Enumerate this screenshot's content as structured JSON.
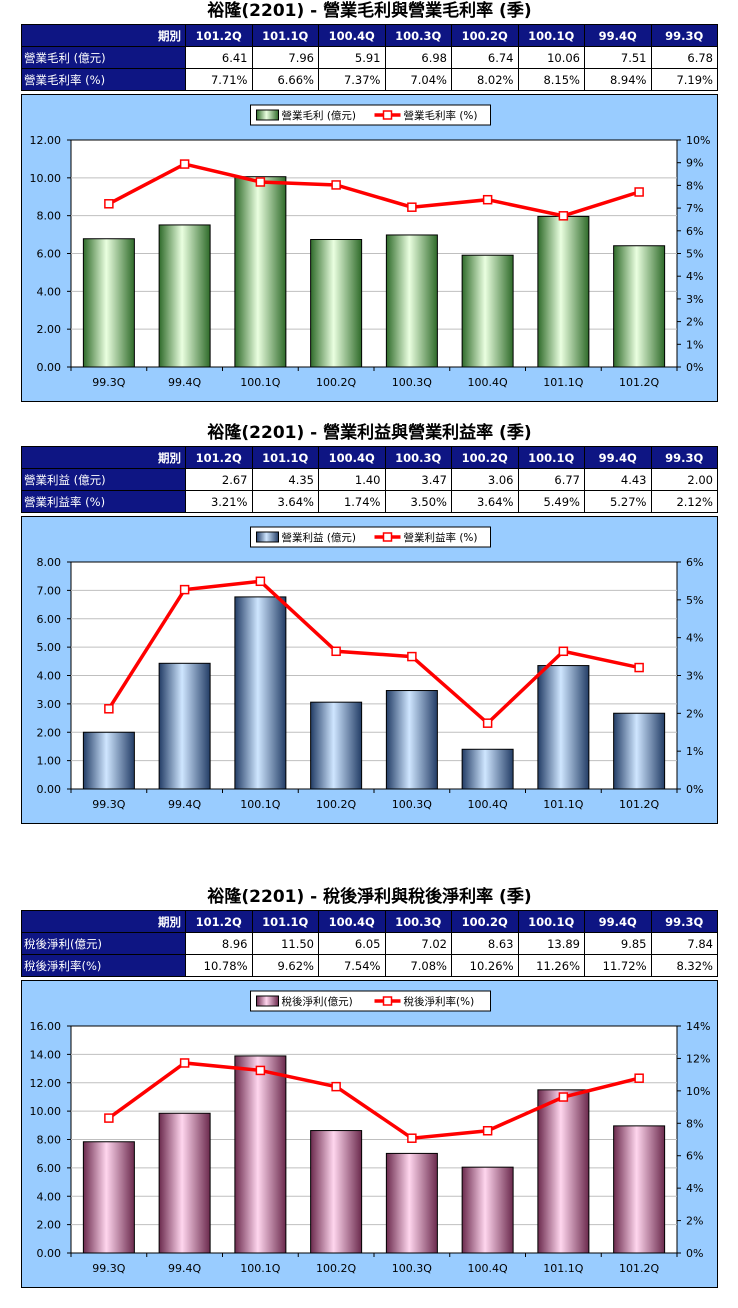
{
  "table_header": {
    "corner": "期別",
    "periods": [
      "101.2Q",
      "101.1Q",
      "100.4Q",
      "100.3Q",
      "100.2Q",
      "100.1Q",
      "99.4Q",
      "99.3Q"
    ]
  },
  "sections": [
    {
      "title": "裕隆(2201) - 營業毛利與營業毛利率 (季)",
      "rows": [
        {
          "label": "營業毛利 (億元)",
          "values": [
            "6.41",
            "7.96",
            "5.91",
            "6.98",
            "6.74",
            "10.06",
            "7.51",
            "6.78"
          ]
        },
        {
          "label": "營業毛利率 (%)",
          "values": [
            "7.71%",
            "6.66%",
            "7.37%",
            "7.04%",
            "8.02%",
            "8.15%",
            "8.94%",
            "7.19%"
          ]
        }
      ]
    },
    {
      "title": "裕隆(2201) - 營業利益與營業利益率 (季)",
      "rows": [
        {
          "label": "營業利益 (億元)",
          "values": [
            "2.67",
            "4.35",
            "1.40",
            "3.47",
            "3.06",
            "6.77",
            "4.43",
            "2.00"
          ]
        },
        {
          "label": "營業利益率 (%)",
          "values": [
            "3.21%",
            "3.64%",
            "1.74%",
            "3.50%",
            "3.64%",
            "5.49%",
            "5.27%",
            "2.12%"
          ]
        }
      ]
    },
    {
      "title": "裕隆(2201) - 稅後淨利與稅後淨利率 (季)",
      "rows": [
        {
          "label": "稅後淨利(億元)",
          "values": [
            "8.96",
            "11.50",
            "6.05",
            "7.02",
            "8.63",
            "13.89",
            "9.85",
            "7.84"
          ]
        },
        {
          "label": "稅後淨利率(%)",
          "values": [
            "10.78%",
            "9.62%",
            "7.54%",
            "7.08%",
            "10.26%",
            "11.26%",
            "11.72%",
            "8.32%"
          ]
        }
      ]
    }
  ],
  "chart_data": [
    {
      "type": "bar+line",
      "categories": [
        "99.3Q",
        "99.4Q",
        "100.1Q",
        "100.2Q",
        "100.3Q",
        "100.4Q",
        "101.1Q",
        "101.2Q"
      ],
      "series": [
        {
          "name": "營業毛利 (億元)",
          "type": "bar",
          "axis": "left",
          "values": [
            6.78,
            7.51,
            10.06,
            6.74,
            6.98,
            5.91,
            7.96,
            6.41
          ]
        },
        {
          "name": "營業毛利率 (%)",
          "type": "line",
          "axis": "right",
          "values": [
            7.19,
            8.94,
            8.15,
            8.02,
            7.04,
            7.37,
            6.66,
            7.71
          ]
        }
      ],
      "ylim_left": [
        0,
        12
      ],
      "ytick_step_left": 2,
      "ytick_decimals_left": 2,
      "ylim_right": [
        0,
        10
      ],
      "ytick_step_right": 1,
      "bar_color_light": "#eaffe0",
      "bar_color_dark": "#2f6b2a",
      "line_color": "#ff0000",
      "grid": true,
      "legend": "top-center"
    },
    {
      "type": "bar+line",
      "categories": [
        "99.3Q",
        "99.4Q",
        "100.1Q",
        "100.2Q",
        "100.3Q",
        "100.4Q",
        "101.1Q",
        "101.2Q"
      ],
      "series": [
        {
          "name": "營業利益 (億元)",
          "type": "bar",
          "axis": "left",
          "values": [
            2.0,
            4.43,
            6.77,
            3.06,
            3.47,
            1.4,
            4.35,
            2.67
          ]
        },
        {
          "name": "營業利益率 (%)",
          "type": "line",
          "axis": "right",
          "values": [
            2.12,
            5.27,
            5.49,
            3.64,
            3.5,
            1.74,
            3.64,
            3.21
          ]
        }
      ],
      "ylim_left": [
        0,
        8
      ],
      "ytick_step_left": 1,
      "ytick_decimals_left": 2,
      "ylim_right": [
        0,
        6
      ],
      "ytick_step_right": 1,
      "bar_color_light": "#cfe6ff",
      "bar_color_dark": "#233d66",
      "line_color": "#ff0000",
      "grid": true,
      "legend": "top-center"
    },
    {
      "type": "bar+line",
      "categories": [
        "99.3Q",
        "99.4Q",
        "100.1Q",
        "100.2Q",
        "100.3Q",
        "100.4Q",
        "101.1Q",
        "101.2Q"
      ],
      "series": [
        {
          "name": "稅後淨利(億元)",
          "type": "bar",
          "axis": "left",
          "values": [
            7.84,
            9.85,
            13.89,
            8.63,
            7.02,
            6.05,
            11.5,
            8.96
          ]
        },
        {
          "name": "稅後淨利率(%)",
          "type": "line",
          "axis": "right",
          "values": [
            8.32,
            11.72,
            11.26,
            10.26,
            7.08,
            7.54,
            9.62,
            10.78
          ]
        }
      ],
      "ylim_left": [
        0,
        16
      ],
      "ytick_step_left": 2,
      "ytick_decimals_left": 2,
      "ylim_right": [
        0,
        14
      ],
      "ytick_step_right": 2,
      "bar_color_light": "#ffd6ee",
      "bar_color_dark": "#6b2a4d",
      "line_color": "#ff0000",
      "grid": true,
      "legend": "top-center"
    }
  ]
}
